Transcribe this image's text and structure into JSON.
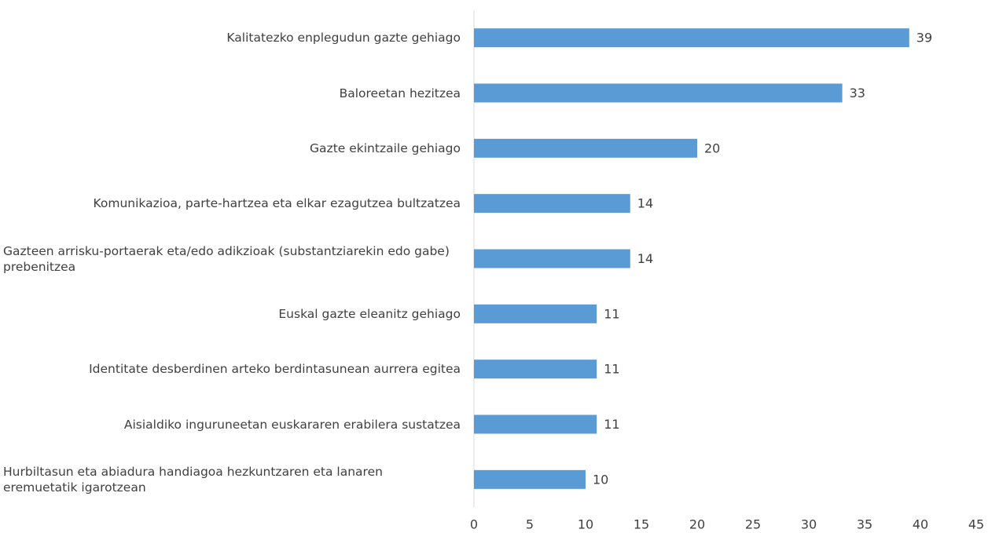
{
  "chart_data": {
    "type": "bar",
    "orientation": "horizontal",
    "categories": [
      "Kalitatezko enplegudun gazte gehiago",
      "Baloreetan hezitzea",
      "Gazte ekintzaile gehiago",
      "Komunikazioa, parte-hartzea eta elkar ezagutzea bultzatzea",
      "Gazteen arrisku-portaerak eta/edo adikzioak (substantziarekin edo gabe) prebenitzea",
      "Euskal gazte eleanitz gehiago",
      "Identitate desberdinen arteko berdintasunean aurrera egitea",
      "Aisialdiko inguruneetan euskararen erabilera sustatzea",
      "Hurbiltasun eta abiadura handiagoa hezkuntzaren eta lanaren eremuetatik igarotzean"
    ],
    "values": [
      39,
      33,
      20,
      14,
      14,
      11,
      11,
      11,
      10
    ],
    "color": "#5b9bd5",
    "xlim": [
      0,
      45
    ],
    "xticks": [
      0,
      5,
      10,
      15,
      20,
      25,
      30,
      35,
      40,
      45
    ],
    "grid": false
  }
}
